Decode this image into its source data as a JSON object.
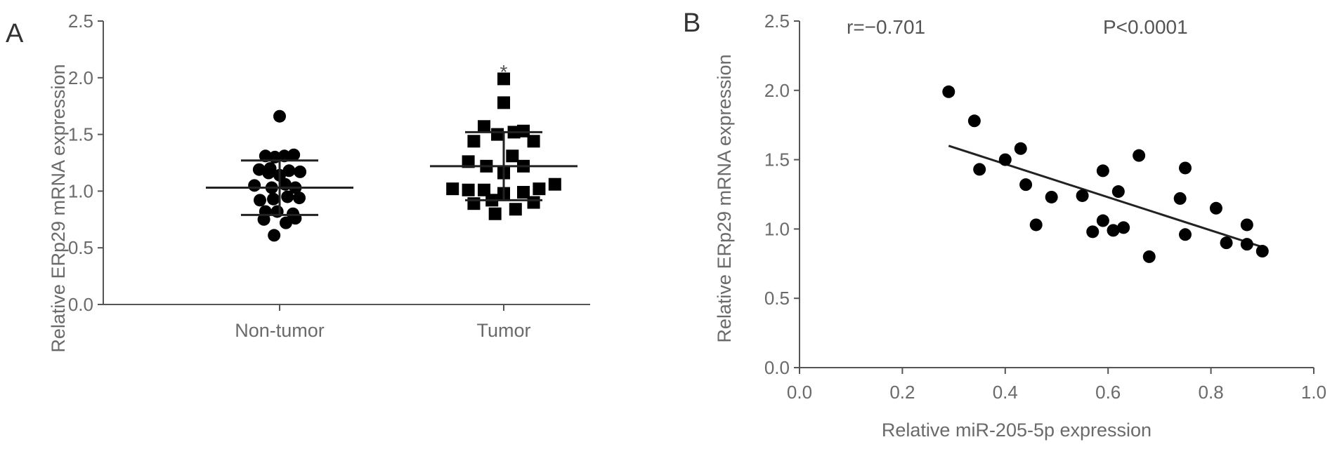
{
  "chart_data": [
    {
      "type": "scatter",
      "panel_label": "A",
      "ylabel": "Relative ERp29 mRNA expression",
      "ylim": [
        0,
        2.5
      ],
      "yticks": [
        "0.0",
        "0.5",
        "1.0",
        "1.5",
        "2.0",
        "2.5"
      ],
      "categories": [
        "Non-tumor",
        "Tumor"
      ],
      "significance_marker": "*",
      "series": [
        {
          "category": "Non-tumor",
          "marker": "circle",
          "mean": 1.03,
          "sd": 0.24,
          "points": [
            {
              "offset": 0.0,
              "y": 1.66
            },
            {
              "offset": -0.18,
              "y": 1.31
            },
            {
              "offset": -0.06,
              "y": 1.3
            },
            {
              "offset": 0.06,
              "y": 1.31
            },
            {
              "offset": 0.18,
              "y": 1.32
            },
            {
              "offset": -0.26,
              "y": 1.19
            },
            {
              "offset": -0.12,
              "y": 1.2
            },
            {
              "offset": 0.12,
              "y": 1.18
            },
            {
              "offset": 0.26,
              "y": 1.17
            },
            {
              "offset": -0.14,
              "y": 1.16
            },
            {
              "offset": 0.0,
              "y": 1.14
            },
            {
              "offset": -0.32,
              "y": 1.05
            },
            {
              "offset": -0.1,
              "y": 1.03
            },
            {
              "offset": 0.07,
              "y": 1.06
            },
            {
              "offset": 0.2,
              "y": 1.03
            },
            {
              "offset": -0.25,
              "y": 0.92
            },
            {
              "offset": -0.08,
              "y": 0.93
            },
            {
              "offset": 0.1,
              "y": 0.95
            },
            {
              "offset": 0.25,
              "y": 0.94
            },
            {
              "offset": -0.18,
              "y": 0.82
            },
            {
              "offset": -0.03,
              "y": 0.82
            },
            {
              "offset": 0.17,
              "y": 0.8
            },
            {
              "offset": -0.2,
              "y": 0.75
            },
            {
              "offset": 0.08,
              "y": 0.72
            },
            {
              "offset": 0.2,
              "y": 0.76
            },
            {
              "offset": -0.07,
              "y": 0.61
            }
          ]
        },
        {
          "category": "Tumor",
          "marker": "square",
          "mean": 1.22,
          "sd": 0.3,
          "points": [
            {
              "offset": 0.0,
              "y": 1.99
            },
            {
              "offset": 0.0,
              "y": 1.78
            },
            {
              "offset": -0.25,
              "y": 1.57
            },
            {
              "offset": 0.13,
              "y": 1.52
            },
            {
              "offset": 0.25,
              "y": 1.53
            },
            {
              "offset": -0.38,
              "y": 1.44
            },
            {
              "offset": -0.08,
              "y": 1.5
            },
            {
              "offset": 0.38,
              "y": 1.44
            },
            {
              "offset": 0.11,
              "y": 1.31
            },
            {
              "offset": -0.45,
              "y": 1.26
            },
            {
              "offset": -0.22,
              "y": 1.22
            },
            {
              "offset": 0.25,
              "y": 1.22
            },
            {
              "offset": 0.0,
              "y": 1.16
            },
            {
              "offset": -0.65,
              "y": 1.02
            },
            {
              "offset": -0.45,
              "y": 1.01
            },
            {
              "offset": -0.25,
              "y": 1.01
            },
            {
              "offset": 0.0,
              "y": 0.98
            },
            {
              "offset": 0.25,
              "y": 0.99
            },
            {
              "offset": 0.45,
              "y": 1.02
            },
            {
              "offset": 0.65,
              "y": 1.06
            },
            {
              "offset": -0.38,
              "y": 0.89
            },
            {
              "offset": -0.15,
              "y": 0.92
            },
            {
              "offset": 0.15,
              "y": 0.84
            },
            {
              "offset": 0.38,
              "y": 0.9
            },
            {
              "offset": -0.11,
              "y": 0.8
            }
          ]
        }
      ]
    },
    {
      "type": "scatter",
      "panel_label": "B",
      "xlabel": "Relative miR-205-5p expression",
      "ylabel": "Relative ERp29 mRNA expression",
      "xlim": [
        0,
        1.0
      ],
      "ylim": [
        0,
        2.5
      ],
      "xticks": [
        "0.0",
        "0.2",
        "0.4",
        "0.6",
        "0.8",
        "1.0"
      ],
      "yticks": [
        "0.0",
        "0.5",
        "1.0",
        "1.5",
        "2.0",
        "2.5"
      ],
      "annotations": {
        "r": "r=−0.701",
        "p": "P<0.0001"
      },
      "regression": {
        "x": [
          0.29,
          0.9
        ],
        "y": [
          1.6,
          0.87
        ]
      },
      "points": [
        {
          "x": 0.29,
          "y": 1.99
        },
        {
          "x": 0.34,
          "y": 1.78
        },
        {
          "x": 0.35,
          "y": 1.43
        },
        {
          "x": 0.4,
          "y": 1.5
        },
        {
          "x": 0.43,
          "y": 1.58
        },
        {
          "x": 0.44,
          "y": 1.32
        },
        {
          "x": 0.46,
          "y": 1.03
        },
        {
          "x": 0.49,
          "y": 1.23
        },
        {
          "x": 0.55,
          "y": 1.24
        },
        {
          "x": 0.57,
          "y": 0.98
        },
        {
          "x": 0.59,
          "y": 1.42
        },
        {
          "x": 0.59,
          "y": 1.06
        },
        {
          "x": 0.61,
          "y": 0.99
        },
        {
          "x": 0.62,
          "y": 1.27
        },
        {
          "x": 0.63,
          "y": 1.01
        },
        {
          "x": 0.66,
          "y": 1.53
        },
        {
          "x": 0.68,
          "y": 0.8
        },
        {
          "x": 0.74,
          "y": 1.22
        },
        {
          "x": 0.75,
          "y": 1.44
        },
        {
          "x": 0.75,
          "y": 0.96
        },
        {
          "x": 0.81,
          "y": 1.15
        },
        {
          "x": 0.83,
          "y": 0.9
        },
        {
          "x": 0.87,
          "y": 1.03
        },
        {
          "x": 0.87,
          "y": 0.89
        },
        {
          "x": 0.9,
          "y": 0.84
        }
      ]
    }
  ]
}
